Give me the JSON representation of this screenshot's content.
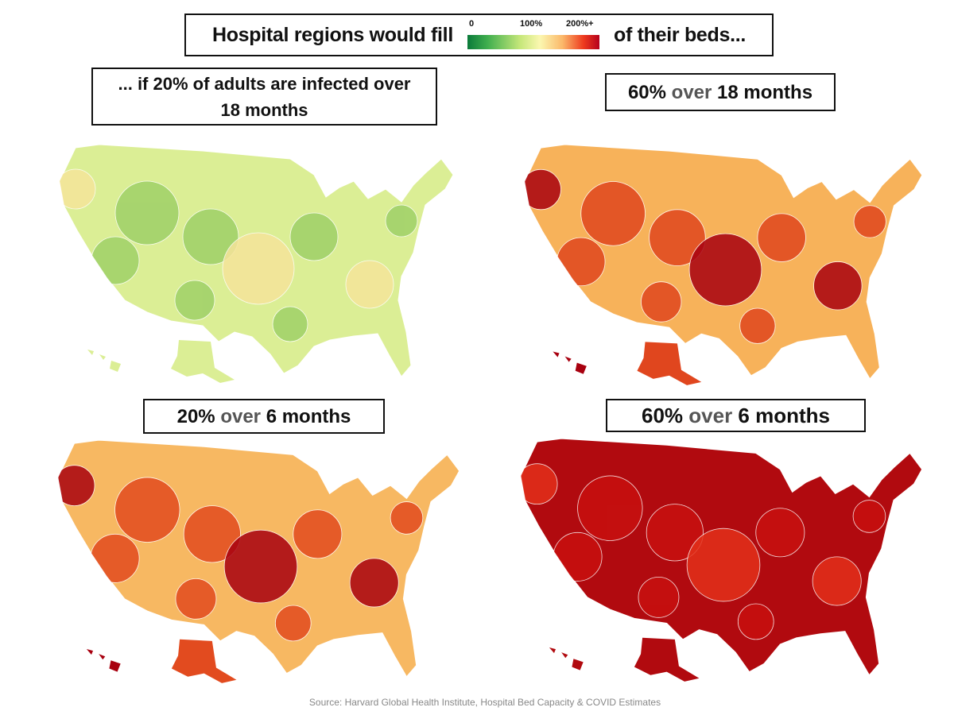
{
  "header": {
    "title_left": "Hospital regions would fill",
    "title_right": "of their beds...",
    "scale": {
      "labels": [
        "0",
        "100%",
        "200%+"
      ],
      "colors": [
        "#0b7a3a",
        "#c6e77a",
        "#fbf7b0",
        "#ee3a1e",
        "#b5001b"
      ]
    }
  },
  "panels": [
    {
      "title_line1": "... if 20% of adults are infected over",
      "title_line2": "18 months",
      "base_color": "#dbee95",
      "accent_color": "#9fd068",
      "hot_color": "#f5e49a"
    },
    {
      "title_a": "60%",
      "title_b": "over",
      "title_c": "18 months",
      "base_color": "#f7b25a",
      "accent_color": "#e0461e",
      "hot_color": "#a8000f"
    },
    {
      "title_a": "20%",
      "title_b": "over",
      "title_c": "6 months",
      "base_color": "#f7b862",
      "accent_color": "#e24b1f",
      "hot_color": "#a8000f"
    },
    {
      "title_a": "60%",
      "title_b": "over",
      "title_c": "6 months",
      "base_color": "#b10a0f",
      "accent_color": "#c8100f",
      "hot_color": "#e3301a"
    }
  ],
  "source": "Source: Harvard Global Health Institute, Hospital Bed Capacity & COVID Estimates"
}
